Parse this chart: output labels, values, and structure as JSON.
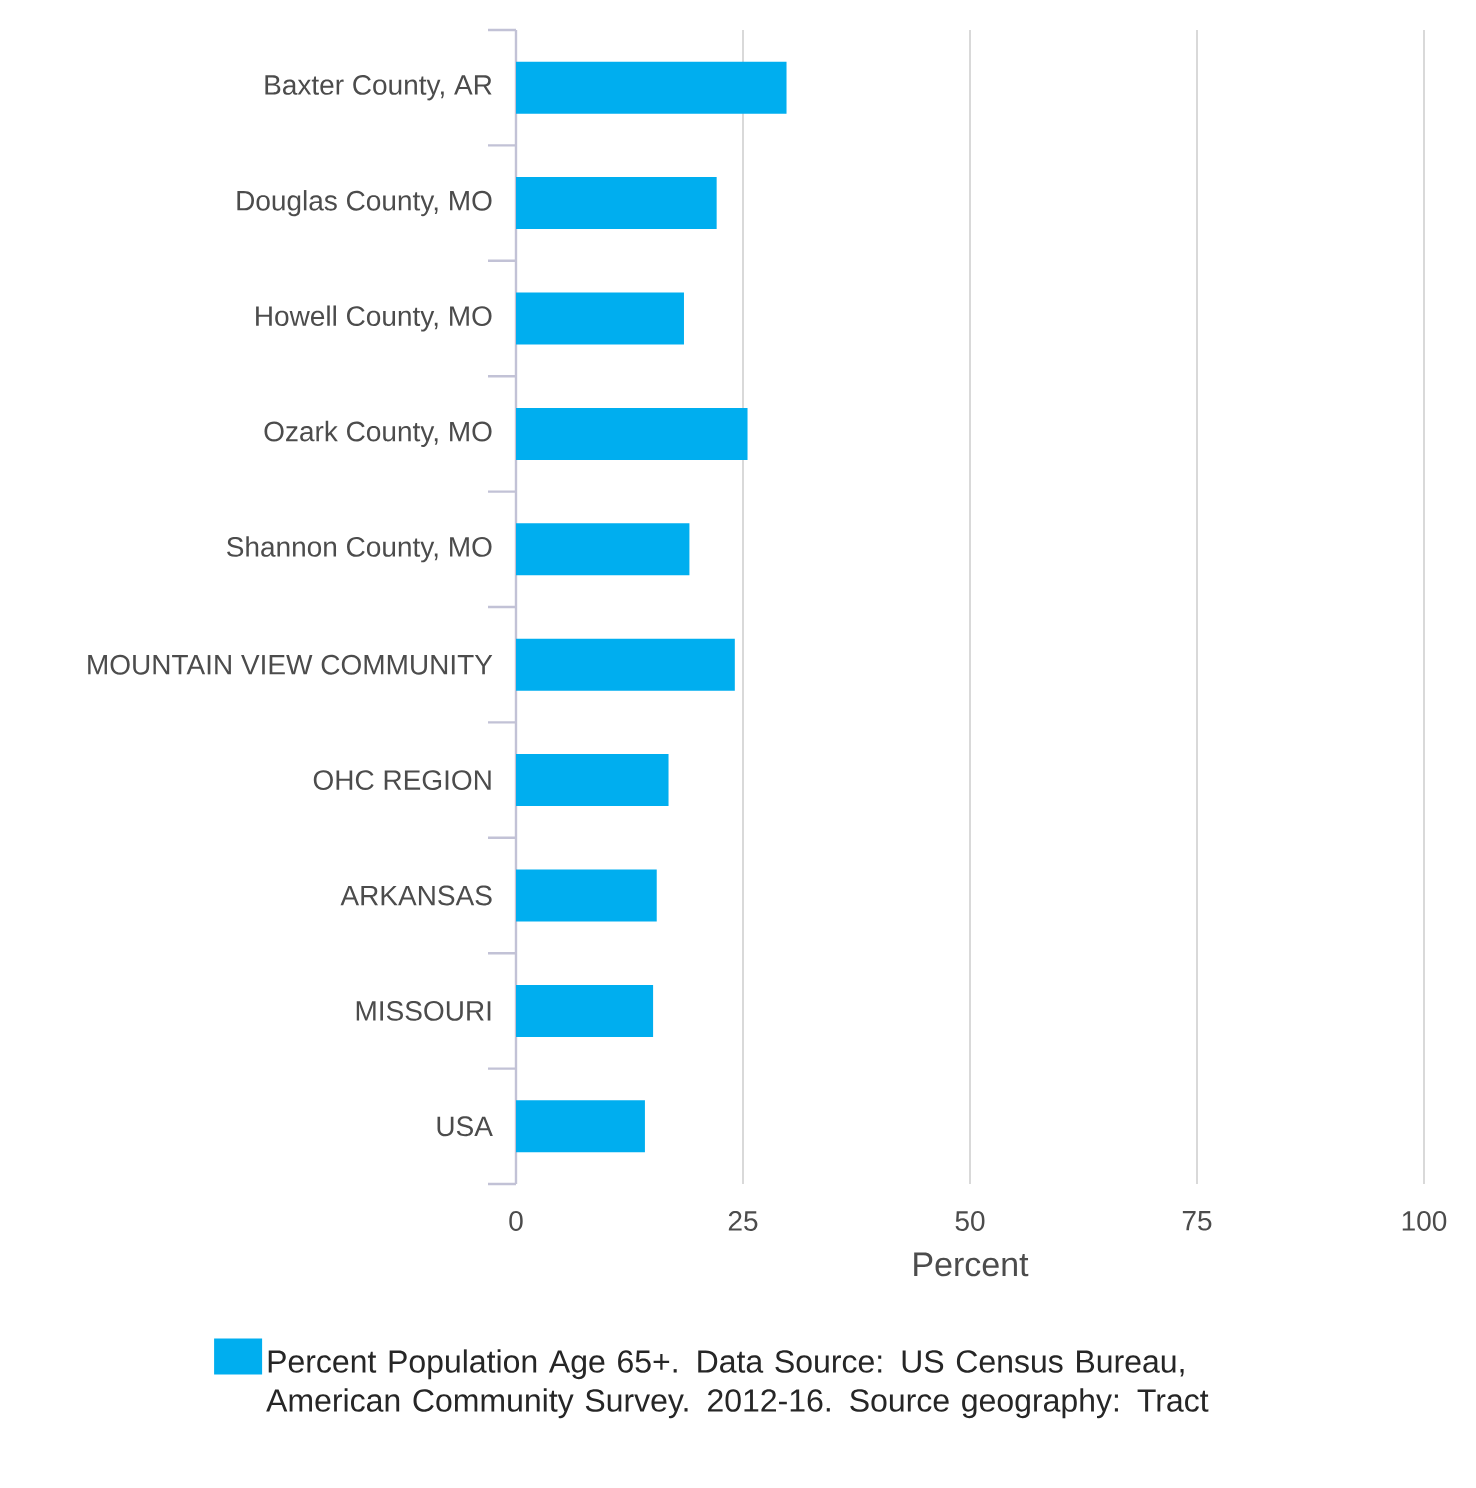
{
  "chart_data": {
    "type": "bar",
    "orientation": "horizontal",
    "xlabel": "Percent",
    "categories": [
      "Baxter County, AR",
      "Douglas County, MO",
      "Howell County, MO",
      "Ozark County, MO",
      "Shannon County, MO",
      "MOUNTAIN VIEW COMMUNITY",
      "OHC REGION",
      "ARKANSAS",
      "MISSOURI",
      "USA"
    ],
    "series": [
      {
        "name": "Percent Population Age 65+. Data Source: US Census Bureau, American Community Survey. 2012-16. Source geography: Tract",
        "color": "#00aeef",
        "values": [
          29.8,
          22.1,
          18.5,
          25.5,
          19.1,
          24.1,
          16.8,
          15.5,
          15.1,
          14.2
        ]
      }
    ],
    "xlim": [
      0,
      100
    ],
    "xticks": [
      0,
      25,
      50,
      75,
      100
    ],
    "grid": "x",
    "legend": "bottom"
  }
}
